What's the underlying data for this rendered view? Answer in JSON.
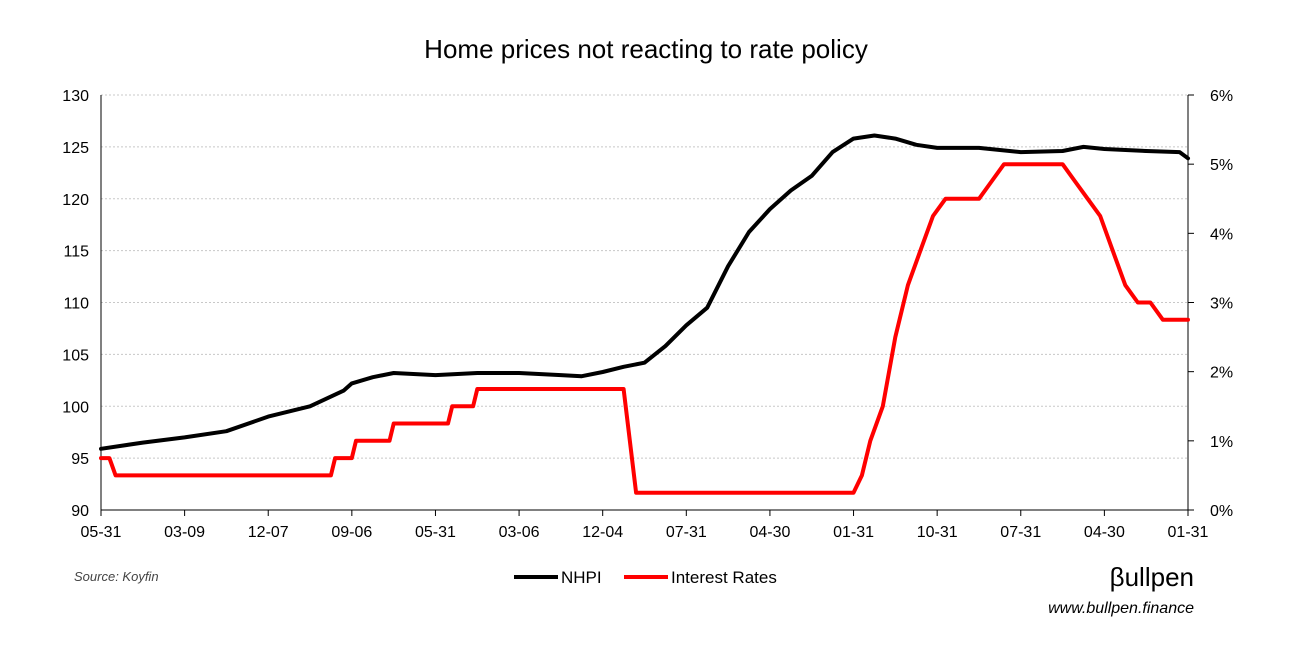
{
  "chart_data": {
    "type": "line",
    "title": "Home prices not reacting to rate policy",
    "x_tick_labels": [
      "05-31",
      "03-09",
      "12-07",
      "09-06",
      "05-31",
      "03-06",
      "12-04",
      "07-31",
      "04-30",
      "01-31",
      "10-31",
      "07-31",
      "04-30",
      "01-31"
    ],
    "y_left": {
      "min": 90,
      "max": 130,
      "step": 5,
      "ticks": [
        "90",
        "95",
        "100",
        "105",
        "110",
        "115",
        "120",
        "125",
        "130"
      ]
    },
    "y_right": {
      "min": 0,
      "max": 6,
      "step": 1,
      "ticks": [
        "0%",
        "1%",
        "2%",
        "3%",
        "4%",
        "5%",
        "6%"
      ]
    },
    "grid": true,
    "legend_position": "bottom",
    "series": [
      {
        "name": "NHPI",
        "axis": "left",
        "color": "#000000",
        "points": [
          [
            0,
            95.9
          ],
          [
            1,
            96.5
          ],
          [
            2,
            97.0
          ],
          [
            3,
            97.6
          ],
          [
            4,
            99.0
          ],
          [
            5,
            100.0
          ],
          [
            5.8,
            101.5
          ],
          [
            6,
            102.2
          ],
          [
            6.5,
            102.8
          ],
          [
            7,
            103.2
          ],
          [
            8,
            103.0
          ],
          [
            9,
            103.2
          ],
          [
            10,
            103.2
          ],
          [
            11,
            103.0
          ],
          [
            11.5,
            102.9
          ],
          [
            12,
            103.3
          ],
          [
            12.5,
            103.8
          ],
          [
            13,
            104.2
          ],
          [
            13.5,
            105.8
          ],
          [
            14,
            107.8
          ],
          [
            14.5,
            109.5
          ],
          [
            15,
            113.5
          ],
          [
            15.5,
            116.8
          ],
          [
            16,
            119.0
          ],
          [
            16.5,
            120.8
          ],
          [
            17,
            122.2
          ],
          [
            17.5,
            124.5
          ],
          [
            18,
            125.8
          ],
          [
            18.5,
            126.1
          ],
          [
            19,
            125.8
          ],
          [
            19.5,
            125.2
          ],
          [
            20,
            124.9
          ],
          [
            21,
            124.9
          ],
          [
            22,
            124.5
          ],
          [
            23,
            124.6
          ],
          [
            23.5,
            125.0
          ],
          [
            24,
            124.8
          ],
          [
            25,
            124.6
          ],
          [
            25.8,
            124.5
          ],
          [
            26,
            123.9
          ]
        ]
      },
      {
        "name": "Interest Rates",
        "axis": "right",
        "color": "#ff0000",
        "points": [
          [
            0,
            0.75
          ],
          [
            0.2,
            0.75
          ],
          [
            0.35,
            0.5
          ],
          [
            5.5,
            0.5
          ],
          [
            5.6,
            0.75
          ],
          [
            6.0,
            0.75
          ],
          [
            6.1,
            1.0
          ],
          [
            6.9,
            1.0
          ],
          [
            7.0,
            1.25
          ],
          [
            8.3,
            1.25
          ],
          [
            8.4,
            1.5
          ],
          [
            8.9,
            1.5
          ],
          [
            9.0,
            1.75
          ],
          [
            12.5,
            1.75
          ],
          [
            12.8,
            0.25
          ],
          [
            18.0,
            0.25
          ],
          [
            18.2,
            0.5
          ],
          [
            18.4,
            1.0
          ],
          [
            18.7,
            1.5
          ],
          [
            19.0,
            2.5
          ],
          [
            19.3,
            3.25
          ],
          [
            19.6,
            3.75
          ],
          [
            19.9,
            4.25
          ],
          [
            20.2,
            4.5
          ],
          [
            21.0,
            4.5
          ],
          [
            21.3,
            4.75
          ],
          [
            21.6,
            5.0
          ],
          [
            23.0,
            5.0
          ],
          [
            23.3,
            4.75
          ],
          [
            23.6,
            4.5
          ],
          [
            23.9,
            4.25
          ],
          [
            24.2,
            3.75
          ],
          [
            24.5,
            3.25
          ],
          [
            24.8,
            3.0
          ],
          [
            25.1,
            3.0
          ],
          [
            25.4,
            2.75
          ],
          [
            26.0,
            2.75
          ]
        ]
      }
    ]
  },
  "legend": [
    {
      "name": "NHPI",
      "color": "#000000"
    },
    {
      "name": "Interest Rates",
      "color": "#ff0000"
    }
  ],
  "source": "Source: Koyfin",
  "brand": {
    "name": "βullpen",
    "url": "www.bullpen.finance"
  }
}
